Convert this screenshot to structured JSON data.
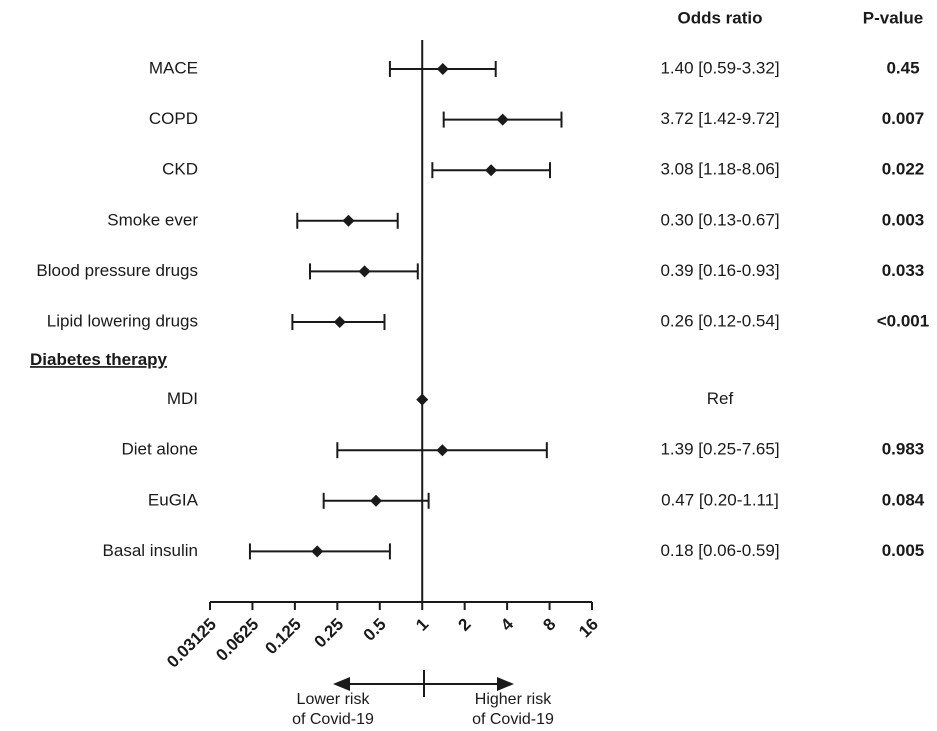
{
  "chart_data": {
    "type": "forest",
    "column_headers": [
      "Odds ratio",
      "P-value"
    ],
    "xscale": "log2",
    "xlim": [
      0.03125,
      16
    ],
    "xticks": [
      0.03125,
      0.0625,
      0.125,
      0.25,
      0.5,
      1,
      2,
      4,
      8,
      16
    ],
    "reference": 1,
    "color": "#1a1a1a",
    "groups": [
      {
        "label": null,
        "categories": [
          "MACE",
          "COPD",
          "CKD",
          "Smoke ever",
          "Blood pressure drugs",
          "Lipid lowering drugs"
        ],
        "values": [
          1.4,
          3.72,
          3.08,
          0.3,
          0.39,
          0.26
        ],
        "lower": [
          0.59,
          1.42,
          1.18,
          0.13,
          0.16,
          0.12
        ],
        "upper": [
          3.32,
          9.72,
          8.06,
          0.67,
          0.93,
          0.54
        ],
        "value_labels": [
          "1.40 [0.59-3.32]",
          "3.72 [1.42-9.72]",
          "3.08 [1.18-8.06]",
          "0.30 [0.13-0.67]",
          "0.39 [0.16-0.93]",
          "0.26 [0.12-0.54]"
        ],
        "p_values": [
          "0.45",
          "0.007",
          "0.022",
          "0.003",
          "0.033",
          "<0.001"
        ]
      },
      {
        "label": "Diabetes therapy",
        "categories": [
          "MDI",
          "Diet alone",
          "EuGIA",
          "Basal insulin"
        ],
        "values": [
          1,
          1.39,
          0.47,
          0.18
        ],
        "lower": [
          null,
          0.25,
          0.2,
          0.06
        ],
        "upper": [
          null,
          7.65,
          1.11,
          0.59
        ],
        "value_labels": [
          "Ref",
          "1.39 [0.25-7.65]",
          "0.47 [0.20-1.11]",
          "0.18 [0.06-0.59]"
        ],
        "p_values": [
          null,
          "0.983",
          "0.084",
          "0.005"
        ]
      }
    ],
    "annotations": [
      {
        "direction": "left",
        "lines": [
          "Lower risk",
          "of Covid-19"
        ]
      },
      {
        "direction": "right",
        "lines": [
          "Higher risk",
          "of Covid-19"
        ]
      }
    ]
  }
}
